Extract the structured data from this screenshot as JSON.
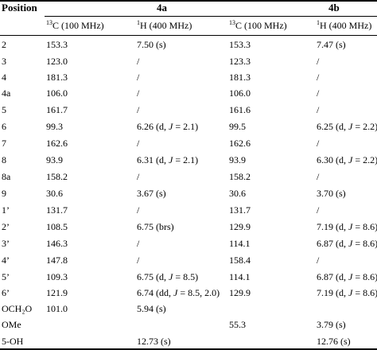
{
  "table": {
    "header": {
      "position": "Position",
      "group_4a": "4a",
      "group_4b": "4b",
      "c13_label": "C  (100 MHz)",
      "c13_sup": "13",
      "h1_label": "H  (400 MHz)",
      "h1_sup": "1"
    },
    "rows": [
      {
        "pos": "2",
        "a_c": "153.3",
        "a_h": "7.50 (s)",
        "b_c": "153.3",
        "b_h": "7.47 (s)"
      },
      {
        "pos": "3",
        "a_c": "123.0",
        "a_h": "/",
        "b_c": "123.3",
        "b_h": "/"
      },
      {
        "pos": "4",
        "a_c": "181.3",
        "a_h": "/",
        "b_c": "181.3",
        "b_h": "/"
      },
      {
        "pos": "4a",
        "a_c": "106.0",
        "a_h": "/",
        "b_c": "106.0",
        "b_h": "/"
      },
      {
        "pos": "5",
        "a_c": "161.7",
        "a_h": "/",
        "b_c": "161.6",
        "b_h": "/"
      },
      {
        "pos": "6",
        "a_c": "99.3",
        "a_h": "6.26 (d, J =  2.1)",
        "b_c": "99.5",
        "b_h": "6.25 (d, J = 2.2)"
      },
      {
        "pos": "7",
        "a_c": "162.6",
        "a_h": "/",
        "b_c": "162.6",
        "b_h": "/"
      },
      {
        "pos": "8",
        "a_c": "93.9",
        "a_h": "6.31 (d, J = 2.1)",
        "b_c": "93.9",
        "b_h": "6.30 (d, J = 2.2)"
      },
      {
        "pos": "8a",
        "a_c": "158.2",
        "a_h": "/",
        "b_c": "158.2",
        "b_h": "/"
      },
      {
        "pos": "9",
        "a_c": "30.6",
        "a_h": "3.67 (s)",
        "b_c": "30.6",
        "b_h": "3.70 (s)"
      },
      {
        "pos": "1’",
        "a_c": "131.7",
        "a_h": "/",
        "b_c": "131.7",
        "b_h": "/"
      },
      {
        "pos": "2’",
        "a_c": "108.5",
        "a_h": "6.75 (brs)",
        "b_c": "129.9",
        "b_h": "7.19 (d, J = 8.6)"
      },
      {
        "pos": "3’",
        "a_c": "146.3",
        "a_h": "/",
        "b_c": "114.1",
        "b_h": "6.87 (d, J = 8.6)"
      },
      {
        "pos": "4’",
        "a_c": "147.8",
        "a_h": "/",
        "b_c": "158.4",
        "b_h": "/"
      },
      {
        "pos": "5’",
        "a_c": "109.3",
        "a_h": "6.75 (d, J = 8.5)",
        "b_c": "114.1",
        "b_h": "6.87 (d, J = 8.6)"
      },
      {
        "pos": "6’",
        "a_c": "121.9",
        "a_h": "6.74 (dd, J = 8.5, 2.0)",
        "b_c": "129.9",
        "b_h": "7.19 (d, J = 8.6)"
      },
      {
        "pos": "OCH₂O",
        "a_c": "101.0",
        "a_h": "5.94 (s)",
        "b_c": "",
        "b_h": ""
      },
      {
        "pos": "OMe",
        "a_c": "",
        "a_h": "",
        "b_c": "55.3",
        "b_h": "3.79 (s)"
      },
      {
        "pos": "5-OH",
        "a_c": "",
        "a_h": "12.73 (s)",
        "b_c": "",
        "b_h": "12.76 (s)"
      }
    ]
  }
}
